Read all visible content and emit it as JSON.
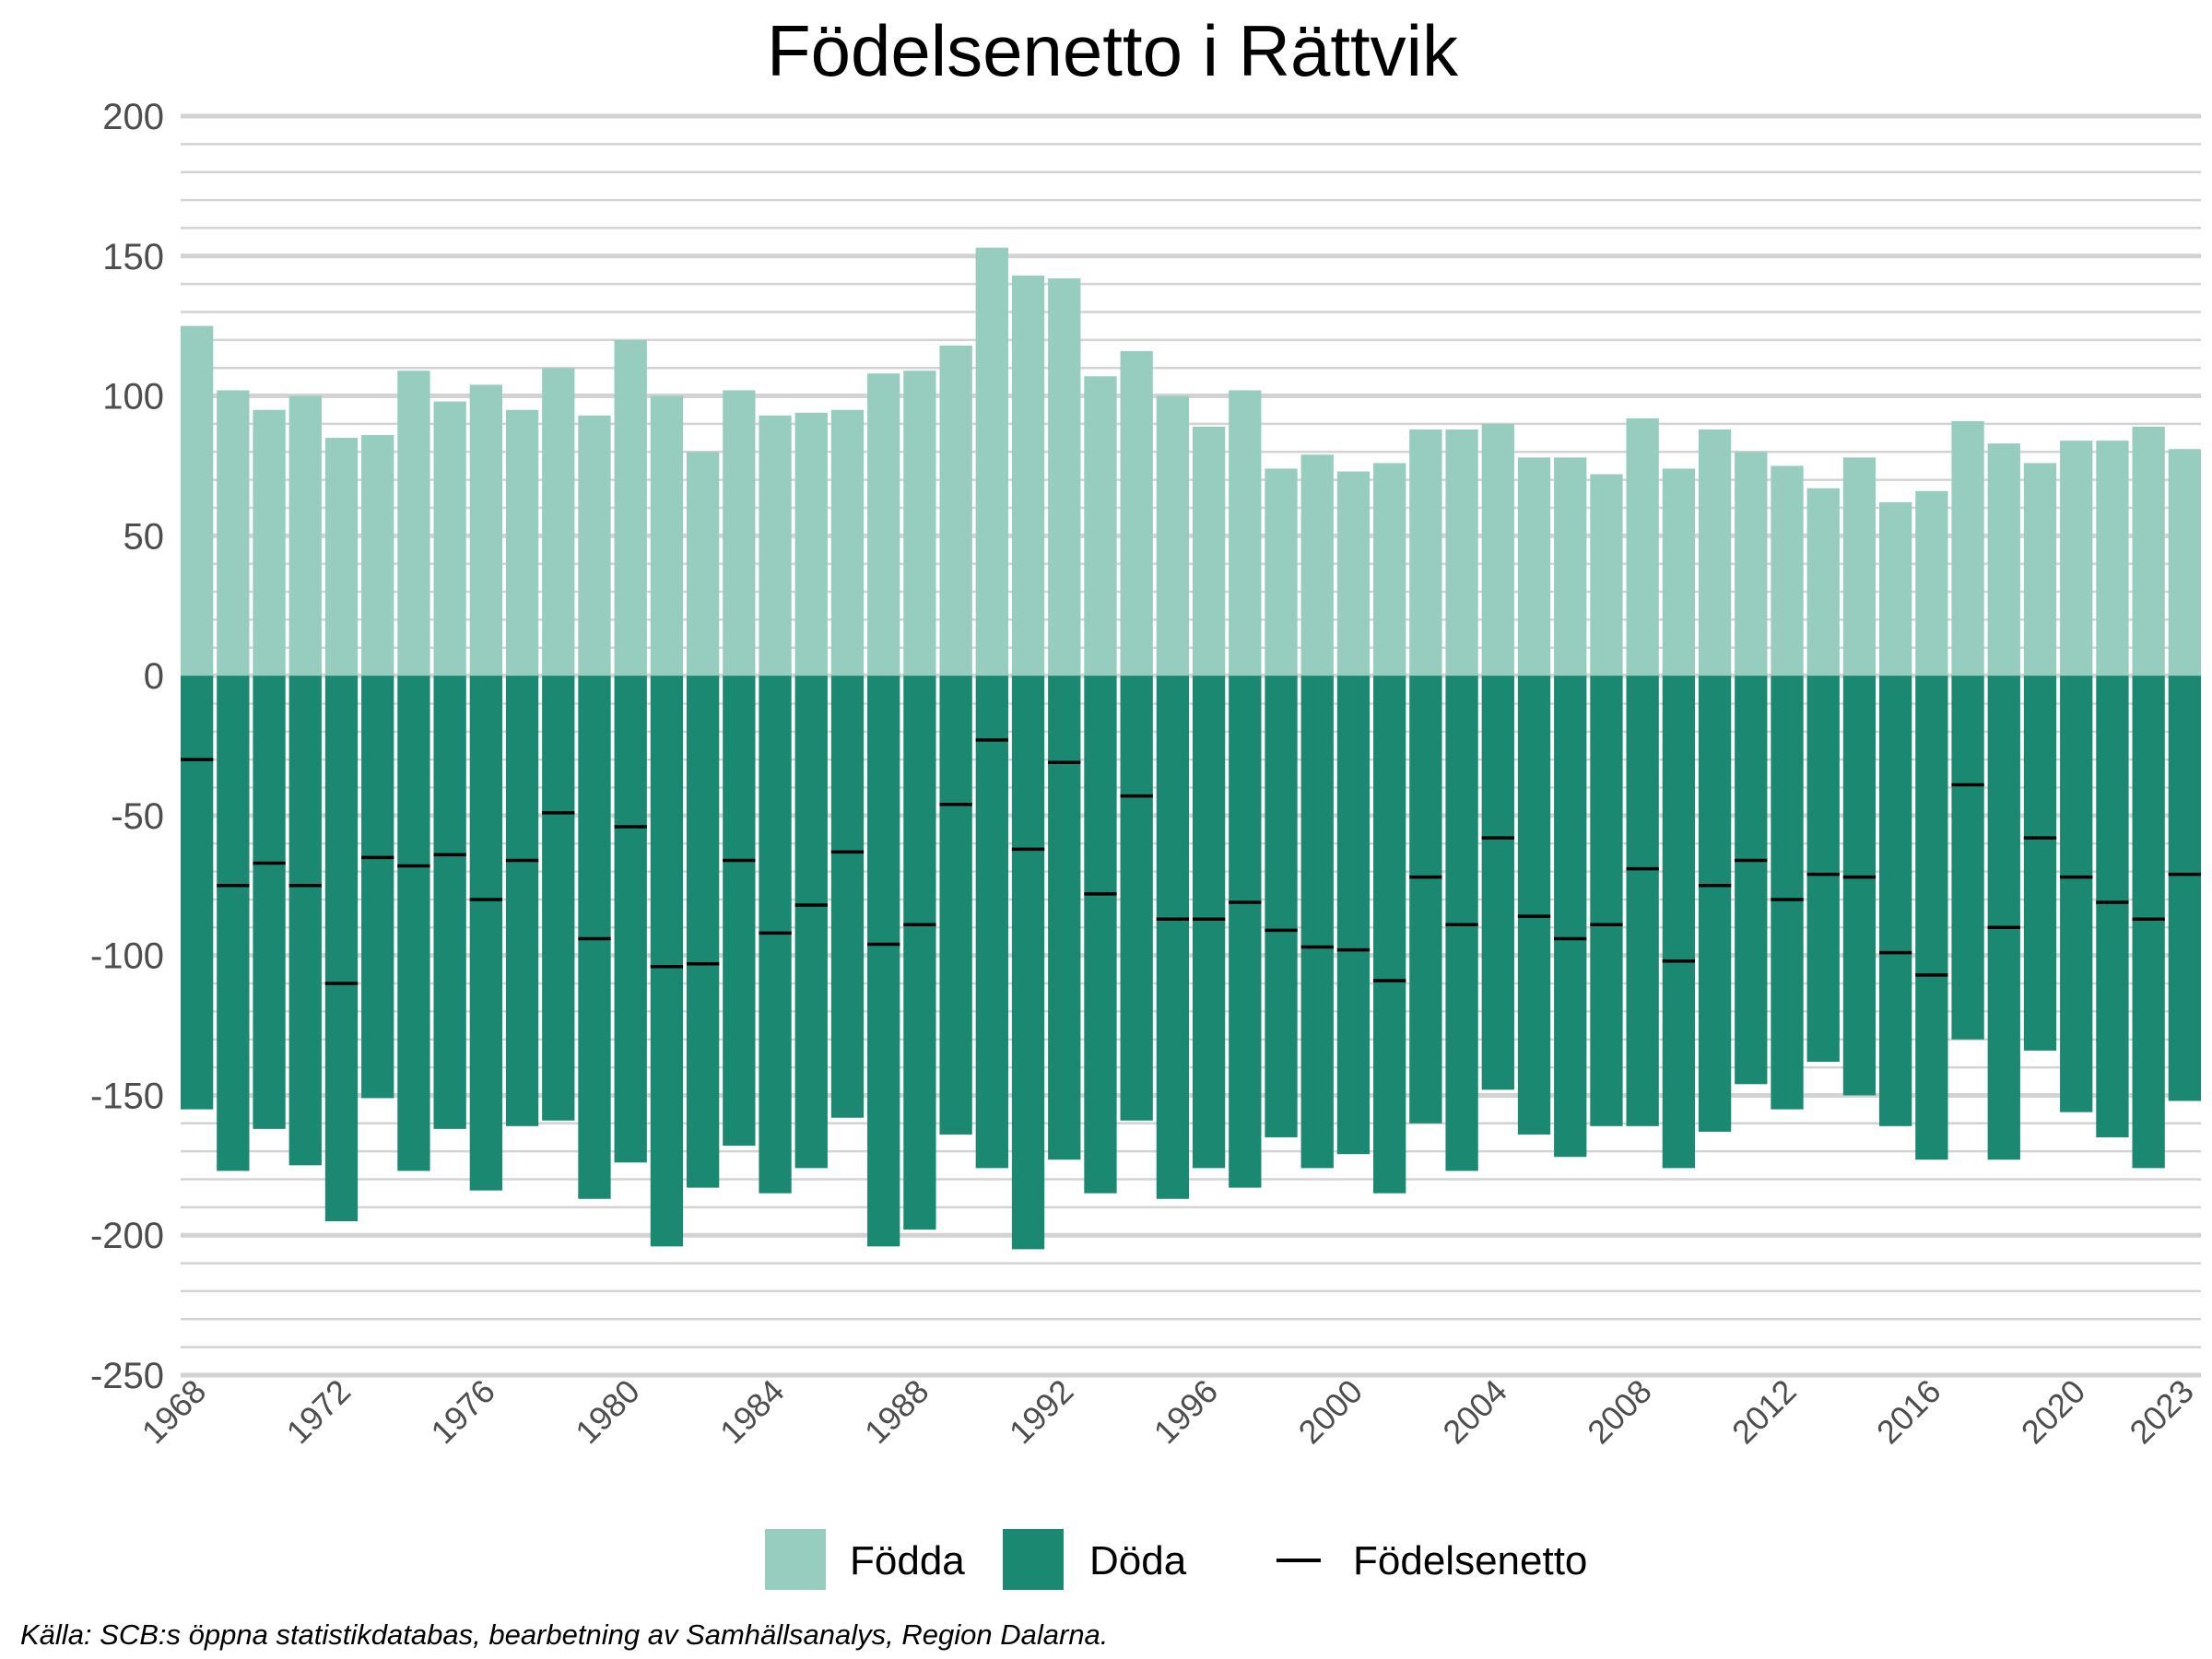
{
  "chart_data": {
    "type": "bar",
    "title": "Födelsenetto i Rättvik",
    "caption": "Källa: SCB:s öppna statistikdatabas, bearbetning av Samhällsanalys, Region Dalarna.",
    "xlabel": "",
    "ylabel": "",
    "ylim": [
      -250,
      200
    ],
    "y_ticks": [
      200,
      150,
      100,
      50,
      0,
      -50,
      -100,
      -150,
      -200,
      -250
    ],
    "x_tick_years": [
      1968,
      1972,
      1976,
      1980,
      1984,
      1988,
      1992,
      1996,
      2000,
      2004,
      2008,
      2012,
      2016,
      2020,
      2023
    ],
    "grid": true,
    "legend_position": "bottom",
    "colors": {
      "fodda": "#96cdbf",
      "doda": "#1b8872",
      "netto": "#000000",
      "grid": "#d3d3d3"
    },
    "legend": [
      {
        "label": "Födda",
        "type": "box",
        "color": "#96cdbf"
      },
      {
        "label": "Döda",
        "type": "box",
        "color": "#1b8872"
      },
      {
        "label": "Födelsenetto",
        "type": "line",
        "color": "#000000"
      }
    ],
    "x": [
      1968,
      1969,
      1970,
      1971,
      1972,
      1973,
      1974,
      1975,
      1976,
      1977,
      1978,
      1979,
      1980,
      1981,
      1982,
      1983,
      1984,
      1985,
      1986,
      1987,
      1988,
      1989,
      1990,
      1991,
      1992,
      1993,
      1994,
      1995,
      1996,
      1997,
      1998,
      1999,
      2000,
      2001,
      2002,
      2003,
      2004,
      2005,
      2006,
      2007,
      2008,
      2009,
      2010,
      2011,
      2012,
      2013,
      2014,
      2015,
      2016,
      2017,
      2018,
      2019,
      2020,
      2021,
      2022,
      2023
    ],
    "series": [
      {
        "name": "Födda",
        "values": [
          125,
          102,
          95,
          100,
          85,
          86,
          109,
          98,
          104,
          95,
          110,
          93,
          120,
          100,
          80,
          102,
          93,
          94,
          95,
          108,
          109,
          118,
          153,
          143,
          142,
          107,
          116,
          100,
          89,
          102,
          74,
          79,
          73,
          76,
          88,
          88,
          90,
          78,
          78,
          72,
          92,
          74,
          88,
          80,
          75,
          67,
          78,
          62,
          66,
          91,
          83,
          76,
          84,
          84,
          89,
          81
        ]
      },
      {
        "name": "Döda",
        "values": [
          -155,
          -177,
          -162,
          -175,
          -195,
          -151,
          -177,
          -162,
          -184,
          -161,
          -159,
          -187,
          -174,
          -204,
          -183,
          -168,
          -185,
          -176,
          -158,
          -204,
          -198,
          -164,
          -176,
          -205,
          -173,
          -185,
          -159,
          -187,
          -176,
          -183,
          -165,
          -176,
          -171,
          -185,
          -160,
          -177,
          -148,
          -164,
          -172,
          -161,
          -161,
          -176,
          -163,
          -146,
          -155,
          -138,
          -150,
          -161,
          -173,
          -130,
          -173,
          -134,
          -156,
          -165,
          -176,
          -152
        ]
      },
      {
        "name": "Födelsenetto",
        "values": [
          -30,
          -75,
          -67,
          -75,
          -110,
          -65,
          -68,
          -64,
          -80,
          -66,
          -49,
          -94,
          -54,
          -104,
          -103,
          -66,
          -92,
          -82,
          -63,
          -96,
          -89,
          -46,
          -23,
          -62,
          -31,
          -78,
          -43,
          -87,
          -87,
          -81,
          -91,
          -97,
          -98,
          -109,
          -72,
          -89,
          -58,
          -86,
          -94,
          -89,
          -69,
          -102,
          -75,
          -66,
          -80,
          -71,
          -72,
          -99,
          -107,
          -39,
          -90,
          -58,
          -72,
          -81,
          -87,
          -71
        ]
      }
    ]
  }
}
